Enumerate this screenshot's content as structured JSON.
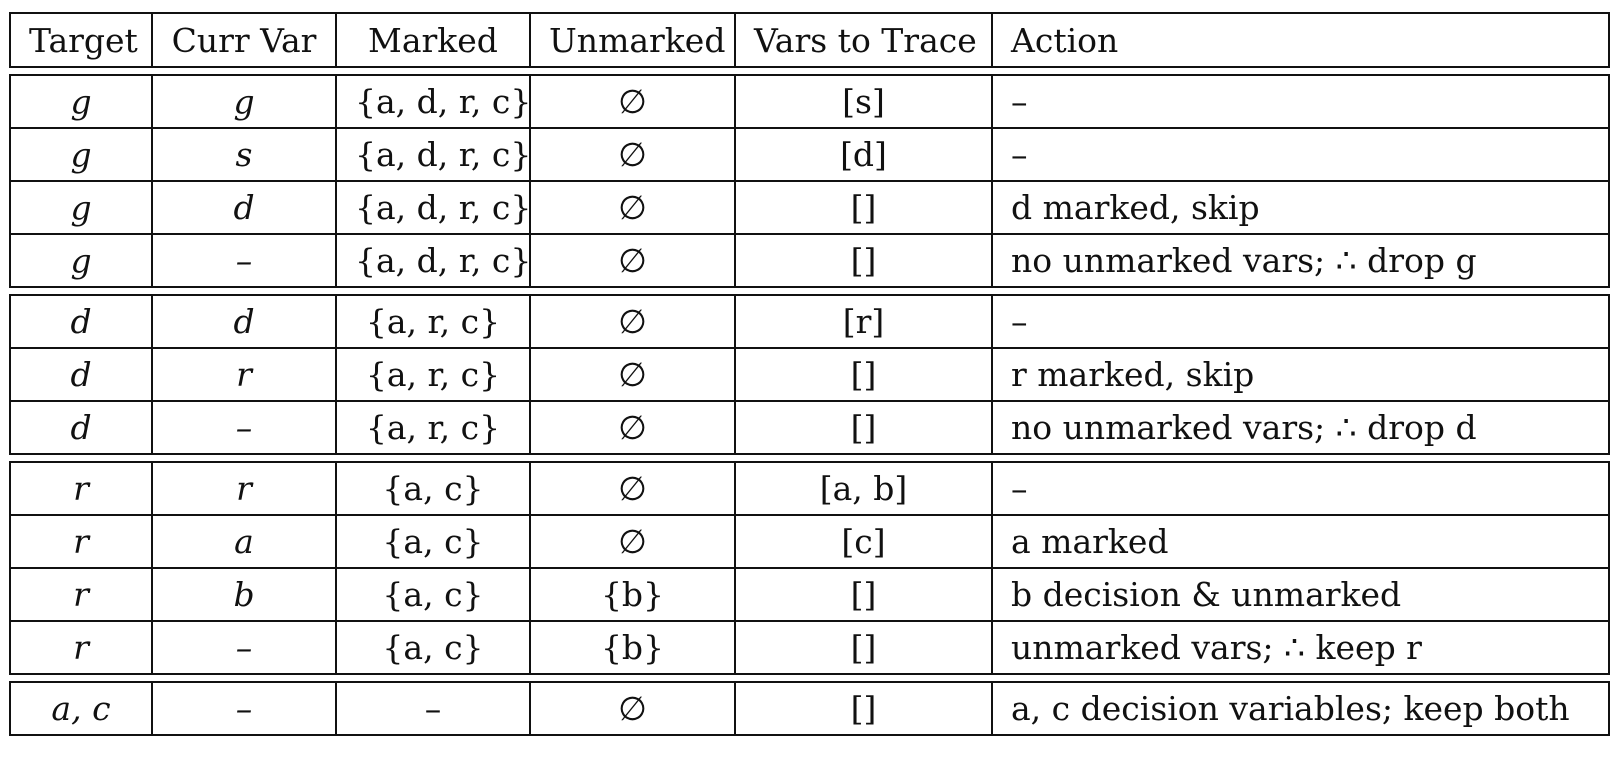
{
  "headers": [
    "Target",
    "Curr Var",
    "Marked",
    "Unmarked",
    "Vars to Trace",
    "Action"
  ],
  "groups": [
    [
      [
        "g",
        "g",
        "{a, d, r, c}",
        "∅",
        "[s]",
        "–"
      ],
      [
        "g",
        "s",
        "{a, d, r, c}",
        "∅",
        "[d]",
        "–"
      ],
      [
        "g",
        "d",
        "{a, d, r, c}",
        "∅",
        "[]",
        "d marked, skip"
      ],
      [
        "g",
        "–",
        "{a, d, r, c}",
        "∅",
        "[]",
        "no unmarked vars; ∴ drop g"
      ]
    ],
    [
      [
        "d",
        "d",
        "{a, r, c}",
        "∅",
        "[r]",
        "–"
      ],
      [
        "d",
        "r",
        "{a, r, c}",
        "∅",
        "[]",
        "r marked, skip"
      ],
      [
        "d",
        "–",
        "{a, r, c}",
        "∅",
        "[]",
        "no unmarked vars; ∴ drop d"
      ]
    ],
    [
      [
        "r",
        "r",
        "{a, c}",
        "∅",
        "[a, b]",
        "–"
      ],
      [
        "r",
        "a",
        "{a, c}",
        "∅",
        "[c]",
        "a marked"
      ],
      [
        "r",
        "b",
        "{a, c}",
        "{b}",
        "[]",
        "b decision & unmarked"
      ],
      [
        "r",
        "–",
        "{a, c}",
        "{b}",
        "[]",
        "unmarked vars; ∴ keep r"
      ]
    ],
    [
      [
        "a, c",
        "–",
        "–",
        "∅",
        "[]",
        "a, c decision variables; keep both"
      ]
    ]
  ]
}
